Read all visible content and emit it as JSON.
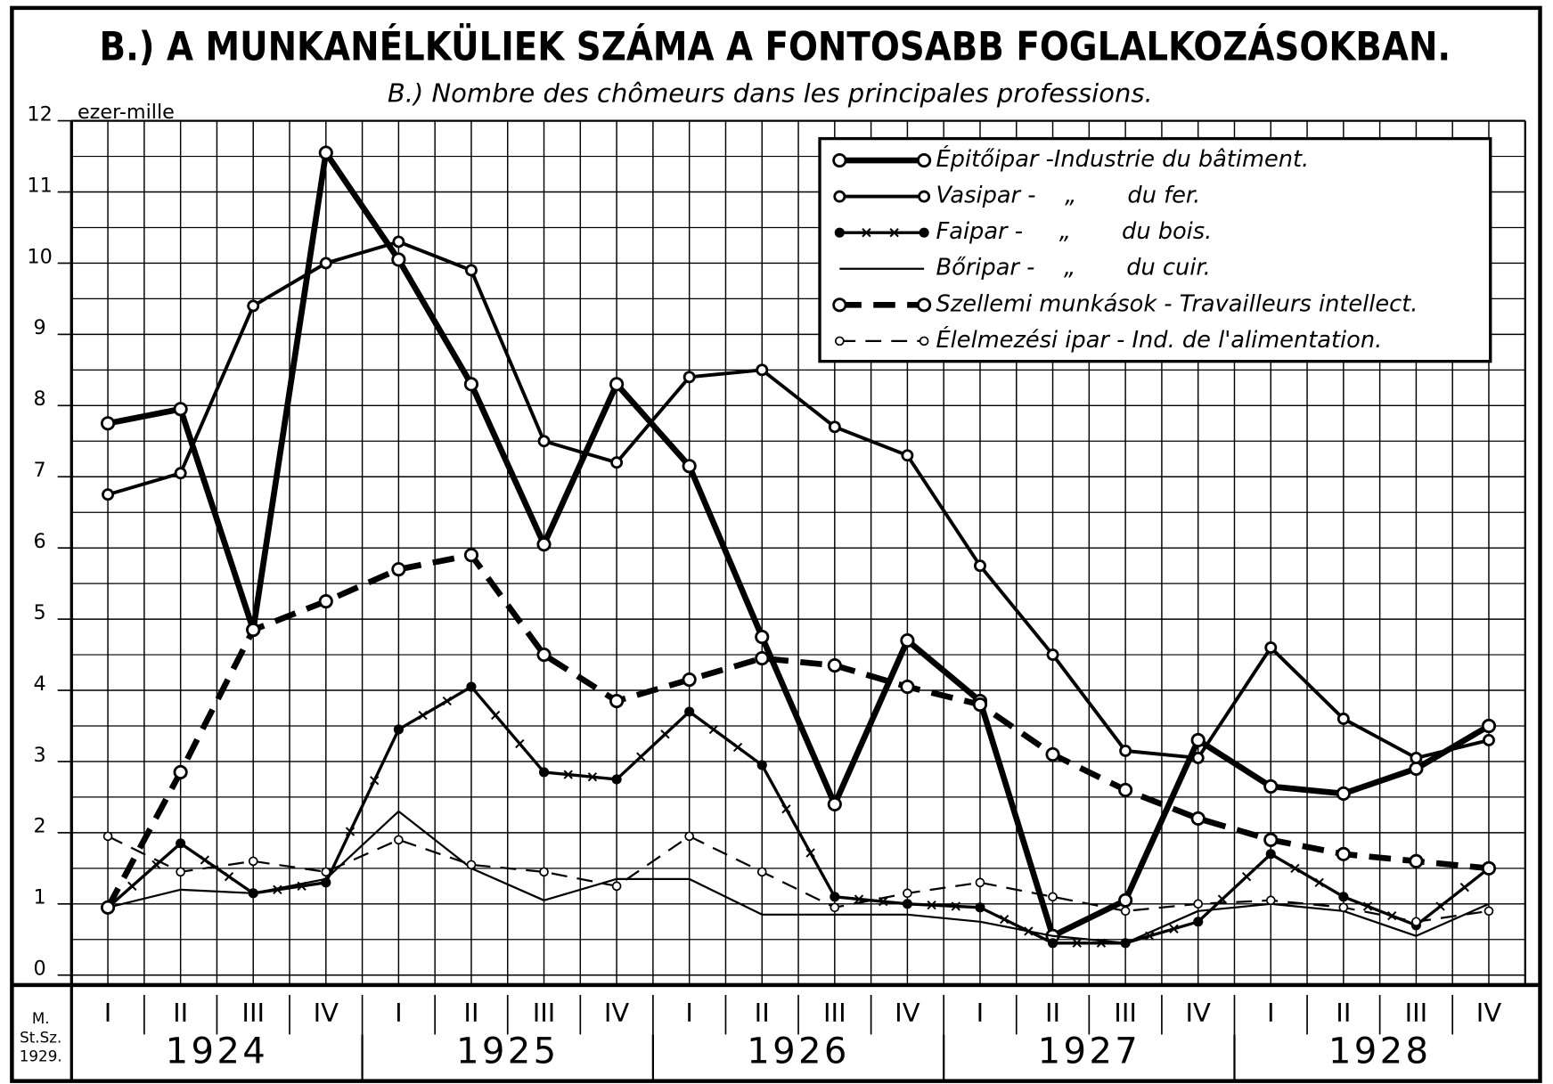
{
  "chart_data": {
    "type": "line",
    "title": "B.) A MUNKANÉLKÜLIEK SZÁMA A FONTOSABB FOGLALKOZÁSOKBAN.",
    "subtitle": "B.) Nombre des chômeurs dans les principales professions.",
    "y_label": "ezer-mille",
    "source": [
      "M.",
      "St.Sz.",
      "1929."
    ],
    "categories": [
      "I",
      "II",
      "III",
      "IV",
      "I",
      "II",
      "III",
      "IV",
      "I",
      "II",
      "III",
      "IV",
      "I",
      "II",
      "III",
      "IV",
      "I",
      "II",
      "III",
      "IV"
    ],
    "years": [
      "1924",
      "1925",
      "1926",
      "1927",
      "1928"
    ],
    "ylim": [
      0,
      12
    ],
    "yticks": [
      0,
      1,
      2,
      3,
      4,
      5,
      6,
      7,
      8,
      9,
      10,
      11,
      12
    ],
    "grid": true,
    "legend": "upper right",
    "series": [
      {
        "name": "Épitőipar -Industrie du bâtiment.",
        "color": "#000000",
        "line_width": 6,
        "dashed": false,
        "marker": "open-circle",
        "values": [
          7.75,
          7.95,
          4.85,
          11.55,
          10.05,
          8.3,
          6.05,
          8.3,
          7.15,
          4.75,
          2.4,
          4.7,
          3.85,
          0.55,
          1.05,
          3.3,
          2.65,
          2.55,
          2.9,
          3.5
        ]
      },
      {
        "name": "Vasipar -    „       du fer.",
        "color": "#000000",
        "line_width": 3.5,
        "dashed": false,
        "marker": "open-circle",
        "values": [
          6.75,
          7.05,
          9.4,
          10.0,
          10.3,
          9.9,
          7.5,
          7.2,
          8.4,
          8.5,
          7.7,
          7.3,
          5.75,
          4.5,
          3.15,
          3.05,
          4.6,
          3.6,
          3.05,
          3.3
        ]
      },
      {
        "name": "Faipar -     „       du bois.",
        "color": "#000000",
        "line_width": 3,
        "dashed": false,
        "marker": "dot-x",
        "values": [
          0.95,
          1.85,
          1.15,
          1.3,
          3.45,
          4.05,
          2.85,
          2.75,
          3.7,
          2.95,
          1.1,
          1.0,
          0.95,
          0.45,
          0.45,
          0.75,
          1.7,
          1.1,
          0.7,
          1.5
        ]
      },
      {
        "name": "Bőripar -    „       du cuir.",
        "color": "#000000",
        "line_width": 2,
        "dashed": false,
        "marker": "none",
        "values": [
          0.95,
          1.2,
          1.15,
          1.35,
          2.3,
          1.5,
          1.05,
          1.35,
          1.35,
          0.85,
          0.85,
          0.85,
          0.75,
          0.55,
          0.45,
          0.9,
          1.0,
          0.9,
          0.55,
          1.0
        ]
      },
      {
        "name": "Szellemi munkások - Travailleurs intellect.",
        "color": "#000000",
        "line_width": 6,
        "dashed": true,
        "marker": "open-circle",
        "values": [
          0.95,
          2.85,
          4.85,
          5.25,
          5.7,
          5.9,
          4.5,
          3.85,
          4.15,
          4.45,
          4.35,
          4.05,
          3.8,
          3.1,
          2.6,
          2.2,
          1.9,
          1.7,
          1.6,
          1.5
        ]
      },
      {
        "name": "Élelmezési ipar - Ind. de l'alimentation.",
        "color": "#000000",
        "line_width": 2,
        "dashed": true,
        "marker": "small-circle",
        "values": [
          1.95,
          1.45,
          1.6,
          1.45,
          1.9,
          1.55,
          1.45,
          1.25,
          1.95,
          1.45,
          0.95,
          1.15,
          1.3,
          1.1,
          0.9,
          1.0,
          1.05,
          0.95,
          0.75,
          0.9
        ]
      }
    ]
  }
}
